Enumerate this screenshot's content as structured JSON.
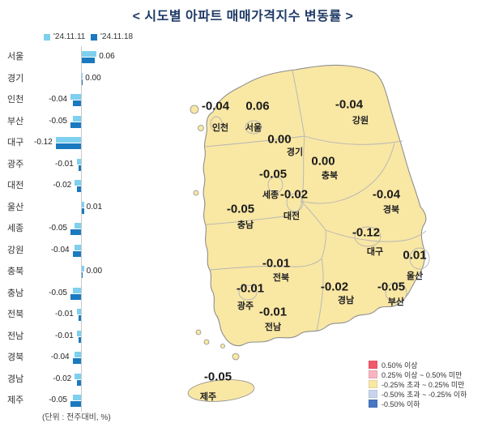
{
  "title": "<  시도별 아파트 매매가격지수 변동률  >",
  "unit_note": "(단위 : 전주대비, %)",
  "series_legend": [
    {
      "label": "'24.11.11",
      "color": "#7ED0EE"
    },
    {
      "label": "'24.11.18",
      "color": "#1B79C0"
    }
  ],
  "chart_data": {
    "type": "bar",
    "orientation": "horizontal",
    "title": "시도별 아파트 매매가격지수 변동률",
    "unit": "전주대비, %",
    "categories": [
      "서울",
      "경기",
      "인천",
      "부산",
      "대구",
      "광주",
      "대전",
      "울산",
      "세종",
      "강원",
      "충북",
      "충남",
      "전북",
      "전남",
      "경북",
      "경남",
      "제주"
    ],
    "series": [
      {
        "name": "'24.11.11",
        "color": "#7ED0EE",
        "values": [
          0.07,
          0.0,
          -0.05,
          -0.04,
          -0.12,
          -0.02,
          -0.03,
          0.01,
          -0.03,
          -0.03,
          0.01,
          -0.04,
          -0.02,
          -0.02,
          -0.03,
          -0.03,
          -0.04
        ]
      },
      {
        "name": "'24.11.18",
        "color": "#1B79C0",
        "values": [
          0.06,
          0.0,
          -0.04,
          -0.05,
          -0.12,
          -0.01,
          -0.02,
          0.01,
          -0.05,
          -0.04,
          0.0,
          -0.05,
          -0.01,
          -0.01,
          -0.04,
          -0.02,
          -0.05
        ]
      }
    ],
    "value_labels": [
      "0.06",
      "0.00",
      "-0.04",
      "-0.05",
      "-0.12",
      "-0.01",
      "-0.02",
      "0.01",
      "-0.05",
      "-0.04",
      "0.00",
      "-0.05",
      "-0.01",
      "-0.01",
      "-0.04",
      "-0.02",
      "-0.05"
    ],
    "xlim": [
      -0.15,
      0.15
    ],
    "zero_axis": true
  },
  "map": {
    "fill_color": "#F9E7A4",
    "regions": [
      {
        "name": "서울",
        "value": "0.06"
      },
      {
        "name": "인천",
        "value": "-0.04"
      },
      {
        "name": "강원",
        "value": "-0.04"
      },
      {
        "name": "경기",
        "value": "0.00"
      },
      {
        "name": "충북",
        "value": "0.00"
      },
      {
        "name": "세종",
        "value": "-0.05"
      },
      {
        "name": "대전",
        "value": "-0.02"
      },
      {
        "name": "충남",
        "value": "-0.05"
      },
      {
        "name": "경북",
        "value": "-0.04"
      },
      {
        "name": "대구",
        "value": "-0.12"
      },
      {
        "name": "울산",
        "value": "0.01"
      },
      {
        "name": "전북",
        "value": "-0.01"
      },
      {
        "name": "경남",
        "value": "-0.02"
      },
      {
        "name": "부산",
        "value": "-0.05"
      },
      {
        "name": "광주",
        "value": "-0.01"
      },
      {
        "name": "전남",
        "value": "-0.01"
      },
      {
        "name": "제주",
        "value": "-0.05"
      }
    ]
  },
  "color_legend": [
    {
      "label": "0.50% 이상",
      "color": "#EF5B6B"
    },
    {
      "label": "0.25% 이상 ~ 0.50% 미만",
      "color": "#F8B3C0"
    },
    {
      "label": "-0.25% 초과 ~ 0.25% 미만",
      "color": "#F9E7A4"
    },
    {
      "label": "-0.50% 초과 ~ -0.25% 이하",
      "color": "#C9D4EE"
    },
    {
      "label": "-0.50% 이하",
      "color": "#4A77C4"
    }
  ]
}
